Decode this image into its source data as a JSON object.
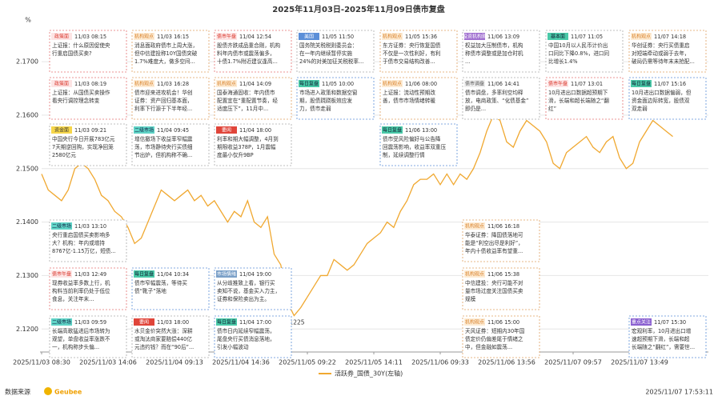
{
  "chart_data": {
    "type": "line",
    "title": "2025年11月03日-2025年11月09日债市复盘",
    "ylabel": "%",
    "ylim": [
      2.1157,
      2.1763
    ],
    "yticks": [
      {
        "value": 2.12,
        "label": "2.1200"
      },
      {
        "value": 2.13,
        "label": "2.1300"
      },
      {
        "value": 2.14,
        "label": "2.1400"
      },
      {
        "value": 2.15,
        "label": "2.1500"
      },
      {
        "value": 2.16,
        "label": "2.1600"
      },
      {
        "value": 2.17,
        "label": "2.1700"
      }
    ],
    "grid": true,
    "categories": [
      "2025/11/03 08:30",
      null,
      null,
      null,
      null,
      null,
      null,
      null,
      null,
      null,
      "2025/11/03 14:06",
      null,
      null,
      null,
      null,
      null,
      null,
      null,
      null,
      null,
      "2025/11/04 09:13",
      null,
      null,
      null,
      null,
      null,
      null,
      null,
      null,
      null,
      "2025/11/04 14:36",
      null,
      null,
      null,
      null,
      null,
      null,
      null,
      null,
      null,
      "2025/11/05 09:22",
      null,
      null,
      null,
      null,
      null,
      null,
      null,
      null,
      null,
      "2025/11/05 14:11",
      null,
      null,
      null,
      null,
      null,
      null,
      null,
      null,
      null,
      "2025/11/06 09:33",
      null,
      null,
      null,
      null,
      null,
      null,
      null,
      null,
      null,
      "2025/11/06 13:56",
      null,
      null,
      null,
      null,
      null,
      null,
      null,
      null,
      null,
      "2025/11/07 09:57",
      null,
      null,
      null,
      null,
      null,
      null,
      null,
      null,
      null,
      "2025/11/07 13:49",
      null,
      null,
      null,
      null,
      null
    ],
    "series": [
      {
        "name": "活跃券_国债_30Y(左轴)",
        "color": "#f0a830",
        "values": [
          2.149,
          2.146,
          2.145,
          2.144,
          2.146,
          2.15,
          2.151,
          2.15,
          2.148,
          2.145,
          2.144,
          2.142,
          2.141,
          2.139,
          2.136,
          2.137,
          2.14,
          2.143,
          2.146,
          2.145,
          2.144,
          2.145,
          2.146,
          2.144,
          2.145,
          2.143,
          2.144,
          2.142,
          2.14,
          2.142,
          2.141,
          2.144,
          2.14,
          2.139,
          2.141,
          2.134,
          2.132,
          2.125,
          2.1225,
          2.124,
          2.126,
          2.128,
          2.13,
          2.13,
          2.133,
          2.132,
          2.131,
          2.132,
          2.134,
          2.136,
          2.137,
          2.138,
          2.14,
          2.139,
          2.142,
          2.144,
          2.147,
          2.148,
          2.148,
          2.149,
          2.147,
          2.149,
          2.147,
          2.149,
          2.148,
          2.15,
          2.153,
          2.157,
          2.16,
          2.159,
          2.155,
          2.154,
          2.157,
          2.159,
          2.158,
          2.157,
          2.155,
          2.151,
          2.15,
          2.153,
          2.154,
          2.155,
          2.156,
          2.154,
          2.153,
          2.155,
          2.156,
          2.152,
          2.15,
          2.151,
          2.155,
          2.157,
          2.159,
          2.158,
          2.157,
          2.156
        ],
        "value_labels": [
          null,
          null,
          null,
          null,
          null,
          null,
          null,
          null,
          null,
          null,
          null,
          null,
          null,
          null,
          null,
          null,
          null,
          null,
          null,
          null,
          null,
          null,
          null,
          null,
          null,
          null,
          null,
          null,
          null,
          null,
          null,
          null,
          null,
          null,
          null,
          null,
          null,
          null,
          "2.1225",
          null,
          null,
          null,
          null,
          null,
          null,
          null,
          null,
          null,
          null,
          null,
          null,
          null,
          null,
          null,
          null,
          null,
          null,
          null,
          null,
          null,
          null,
          null,
          null,
          null,
          null,
          null,
          null,
          null,
          null,
          null,
          null,
          null,
          null,
          null,
          null,
          null,
          null,
          null,
          null,
          null,
          null,
          null,
          null,
          null,
          null,
          null,
          null,
          null,
          null,
          null,
          null,
          null,
          null,
          null,
          null,
          null
        ]
      }
    ],
    "annotations": [
      {
        "tag": "政策面",
        "time": "11/03 08:15",
        "lines": [
          "上证报：什么原因促使央",
          "行重启国债买卖?"
        ]
      },
      {
        "tag": "政策面",
        "time": "11/03 08:19",
        "lines": [
          "上证报：从国债买卖操作",
          "看央行调控理念转变"
        ]
      },
      {
        "tag": "资金面",
        "time": "11/03 09:21",
        "lines": [
          "中国央行今日开展783亿元",
          "7天期逆回购，实现净回笼",
          "2580亿元"
        ]
      },
      {
        "tag": "二级市场",
        "time": "11/03 13:10",
        "lines": [
          "央行重启国债买卖影响多",
          "大？机构：年内或增持",
          "8767亿-1.15万亿，短债..."
        ]
      },
      {
        "tag": "债市午盘",
        "time": "11/03 12:49",
        "lines": [
          "现券收益率多数上行，机",
          "构料当前利率仍处于低位",
          "食息，关注年末..."
        ]
      },
      {
        "tag": "二级市场",
        "time": "11/03 09:59",
        "lines": [
          "长端高歌猛进后市场转为",
          "观望，单盘收益率涨跌不",
          "一，机构称步头偏..."
        ]
      },
      {
        "tag": "机构观点",
        "time": "11/03 16:15",
        "lines": [
          "消息面政府债市上周大涨，",
          "但中信建投称10Y国债突破",
          "1.7%难度大，做多空间..."
        ]
      },
      {
        "tag": "机构观点",
        "time": "11/03 16:28",
        "lines": [
          "债市迎来进攻机会！华创",
          "证券：资产回归基本面，",
          "利率下行源于下半年经..."
        ]
      },
      {
        "tag": "二级市场",
        "time": "11/04 09:45",
        "lines": [
          "增信撤场下收益率窄幅震",
          "荡，市场静待央行买债细",
          "节出炉，但机构称不确..."
        ]
      },
      {
        "tag": "每日复盘",
        "time": "11/04 10:34",
        "lines": [
          "债市窄幅震荡，等待买",
          "债“靴子”落地"
        ]
      },
      {
        "tag": "要闻",
        "time": "11/03 18:00",
        "lines": [
          "水贝金价突然大涨：深耕",
          "或淘汰商家要赔偿440亿",
          "元违约钱？而在“90后”..."
        ]
      },
      {
        "tag": "债市午盘",
        "time": "11/04 12:54",
        "lines": [
          "股债齐跌成品重合刚，机构",
          "料年内债市或震荡偏多，",
          "十债1.7%附近建议逢高..."
        ]
      },
      {
        "tag": "机构观点",
        "time": "11/04 14:09",
        "lines": [
          "国泰海通固收：年内债市",
          "配置宜在“重配置节奏，经",
          "适度压下”，11月中..."
        ]
      },
      {
        "tag": "要闻",
        "time": "11/04 18:00",
        "lines": [
          "利率和期大幅调整，4月到",
          "期限收益378P，1月震幅",
          "度最小仅升9BP"
        ]
      },
      {
        "tag": "市场情绪",
        "time": "11/04 19:00",
        "lines": [
          "从分歧推致上看，银行买",
          "卖知不说，基金买入力主，",
          "证券和保险卖出为主。"
        ]
      },
      {
        "tag": "每日复盘",
        "time": "11/04 17:00",
        "lines": [
          "债市日内延续窄幅震荡，",
          "尾盘央行买债消息落地，",
          "引发小幅波动"
        ]
      },
      {
        "tag": "美国",
        "time": "11/05 11:50",
        "lines": [
          "国务院关税税则委员会：",
          "在一年内继续暂停实施",
          "24%的对美加征关税税率..."
        ]
      },
      {
        "tag": "每日复盘",
        "time": "11/05 10:00",
        "lines": [
          "市场进入政策和数据空窗",
          "期，股债跷跷板效应发",
          "力，债市走弱"
        ]
      },
      {
        "tag": "机构观点",
        "time": "11/05 15:36",
        "lines": [
          "东方证券：央行恢复国债",
          "不仅是一次性利好，有利",
          "于债市交易结构改善..."
        ]
      },
      {
        "tag": "机构观点",
        "time": "11/06 08:00",
        "lines": [
          "上证报：流动性预期改",
          "善，债市市场情绪转暖"
        ]
      },
      {
        "tag": "每日复盘",
        "time": "11/06 13:00",
        "lines": [
          "债市受风险偏好与公告降",
          "回震荡影响，收益率双重压",
          "制，延续调整行情"
        ]
      },
      {
        "tag": "投资机构观",
        "time": "11/06 13:09",
        "lines": [
          "权益加大压制债市，机构",
          "称债市调整或是加仓时机",
          "..."
        ]
      },
      {
        "tag": "债市调盘",
        "time": "11/06 14:41",
        "lines": [
          "债市调盘，多率利空均释",
          "放，电商政策、“化债基金”",
          "即仍是..."
        ]
      },
      {
        "tag": "机构观点",
        "time": "11/06 16:18",
        "lines": [
          "华泰证券：降国债落地可",
          "能是“利空出尽是利好”，",
          "年内十债收益率有望重..."
        ]
      },
      {
        "tag": "机构观点",
        "time": "11/06 15:38",
        "lines": [
          "中信建投：央行可能不对",
          "量市场过度关注国债买卖",
          "规模"
        ]
      },
      {
        "tag": "机构观点",
        "time": "11/06 15:00",
        "lines": [
          "天风证券：短期内30年国",
          "债定价仍偏差尾于情绪之",
          "中，但金融如震荡..."
        ]
      },
      {
        "tag": "基本面",
        "time": "11/07 11:05",
        "lines": [
          "中国10月以人民币计价出",
          "口同比下降0.8%，进口同",
          "比增长1.4%"
        ]
      },
      {
        "tag": "债市午盘",
        "time": "11/07 13:01",
        "lines": [
          "10月进出口数据超预期下",
          "滑，长端和超长端随之“翻",
          "红”"
        ]
      },
      {
        "tag": "机构观点",
        "time": "11/07 14:18",
        "lines": [
          "华创证券：央行买债重启",
          "对短端牵动或弱于去年，",
          "破局仍需等待年末未抢配..."
        ]
      },
      {
        "tag": "每日复盘",
        "time": "11/07 15:16",
        "lines": [
          "10月进出口数据偏弱，但",
          "资金面边际转宽，股债双",
          "双走弱"
        ]
      },
      {
        "tag": "重点关注",
        "time": "11/07 15:30",
        "lines": [
          "宏观利率，10月进出口增",
          "速超预期下滑，长端和超",
          "长端随之“翻红”，需要世..."
        ]
      }
    ],
    "source": "数据来源",
    "brand": "Geubee",
    "timestamp": "2025/11/07 17:53:11"
  }
}
